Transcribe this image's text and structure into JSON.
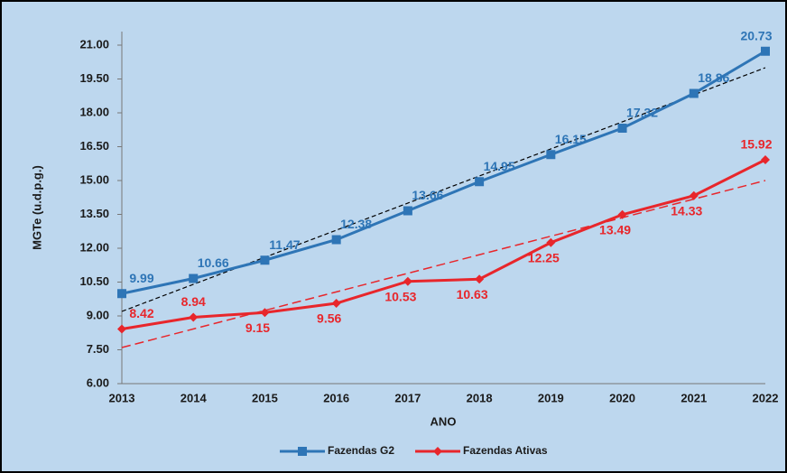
{
  "chart_data": {
    "type": "line",
    "xlabel": "ANO",
    "ylabel": "MGTe (u.d.p.g.)",
    "categories": [
      "2013",
      "2014",
      "2015",
      "2016",
      "2017",
      "2018",
      "2019",
      "2020",
      "2021",
      "2022"
    ],
    "series": [
      {
        "name": "Fazendas G2",
        "color": "#2e75b6",
        "marker": "square",
        "values": [
          9.99,
          10.66,
          11.47,
          12.38,
          13.66,
          14.95,
          16.15,
          17.32,
          18.86,
          20.73
        ]
      },
      {
        "name": "Fazendas Ativas",
        "color": "#e8262b",
        "marker": "diamond",
        "values": [
          8.42,
          8.94,
          9.15,
          9.56,
          10.53,
          10.63,
          12.25,
          13.49,
          14.33,
          15.92
        ]
      }
    ],
    "trendlines": [
      {
        "color": "#000000",
        "values": [
          9.2,
          20.0
        ]
      },
      {
        "color": "#e8262b",
        "values": [
          7.6,
          15.0
        ]
      }
    ],
    "ylim": [
      6,
      22
    ],
    "yticks": [
      {
        "value": 6,
        "label": "6.00"
      },
      {
        "value": 7.5,
        "label": "7.50"
      },
      {
        "value": 9,
        "label": "9.00"
      },
      {
        "value": 10.5,
        "label": "10.50"
      },
      {
        "value": 12,
        "label": "12.00"
      },
      {
        "value": 13.5,
        "label": "13.50"
      },
      {
        "value": 15,
        "label": "15.00"
      },
      {
        "value": 16.5,
        "label": "16.50"
      },
      {
        "value": 18,
        "label": "18.00"
      },
      {
        "value": 19.5,
        "label": "19.50"
      },
      {
        "value": 21,
        "label": "21.00"
      }
    ],
    "legend": "bottom"
  }
}
